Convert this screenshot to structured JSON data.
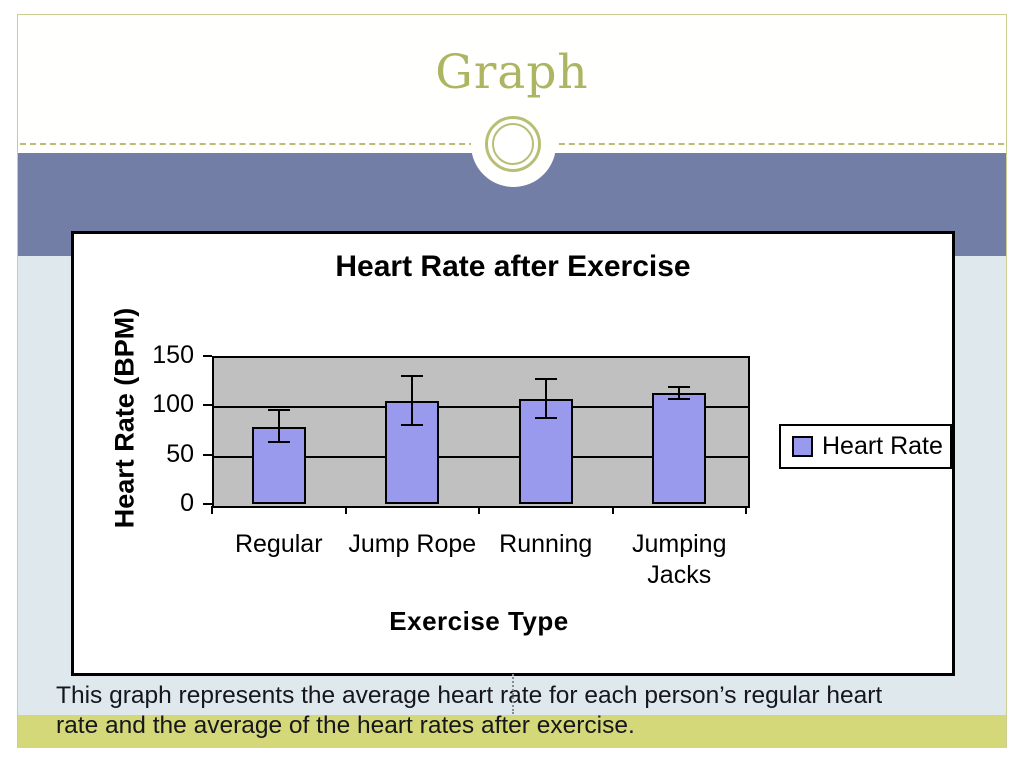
{
  "slide": {
    "title": "Graph",
    "caption_lines": [
      "This graph represents the average heart rate for each person’s regular heart",
      "rate and the average of the heart rates after exercise."
    ]
  },
  "colors": {
    "accent_olive": "#adb563",
    "olive_rule": "#b8bf74",
    "olive_border": "#c9cd8f",
    "band_blue": "#737ea6",
    "body_blue": "#dee8ed",
    "band_yellow": "#d4d878",
    "bar_fill": "#9999ee",
    "plot_bg": "#c0c0c0"
  },
  "chart_data": {
    "type": "bar",
    "title": "Heart Rate after Exercise",
    "categories": [
      "Regular",
      "Jump Rope",
      "Running",
      "Jumping Jacks"
    ],
    "series": [
      {
        "name": "Heart Rate",
        "values": [
          78,
          104,
          106,
          113
        ]
      }
    ],
    "error_bars": [
      {
        "low": 63,
        "high": 95
      },
      {
        "low": 80,
        "high": 130
      },
      {
        "low": 87,
        "high": 127
      },
      {
        "low": 106,
        "high": 119
      }
    ],
    "xlabel": "Exercise Type",
    "ylabel": "Heart Rate (BPM)",
    "ylim": [
      0,
      150
    ],
    "yticks": [
      0,
      50,
      100,
      150
    ],
    "grid": true,
    "legend": {
      "position": "right",
      "entries": [
        "Heart Rate"
      ]
    }
  }
}
